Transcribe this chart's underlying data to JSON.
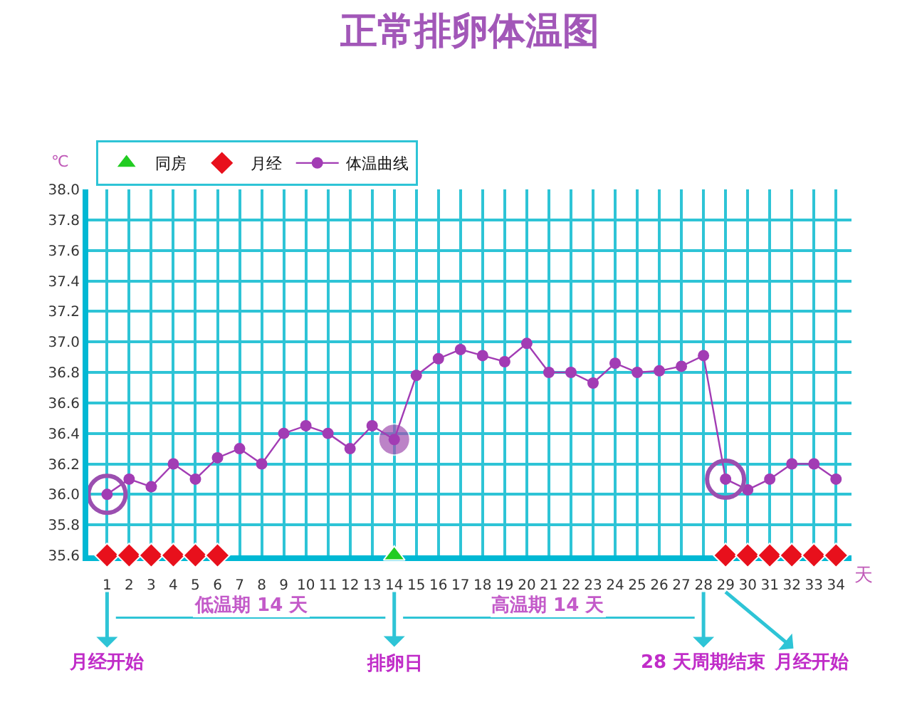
{
  "chart_data": {
    "type": "line",
    "title": "正常排卵体温图",
    "ylabel": "℃",
    "xlabel": "天",
    "x": [
      1,
      2,
      3,
      4,
      5,
      6,
      7,
      8,
      9,
      10,
      11,
      12,
      13,
      14,
      15,
      16,
      17,
      18,
      19,
      20,
      21,
      22,
      23,
      24,
      25,
      26,
      27,
      28,
      29,
      30,
      31,
      32,
      33,
      34
    ],
    "series": [
      {
        "name": "同房",
        "type": "scatter",
        "marker": "triangle",
        "color": "#22cc22",
        "x": [
          14
        ],
        "values": [
          35.6
        ]
      },
      {
        "name": "月经",
        "type": "scatter",
        "marker": "diamond",
        "color": "#e8101c",
        "x": [
          1,
          2,
          3,
          4,
          5,
          6,
          29,
          30,
          31,
          32,
          33,
          34
        ],
        "values": [
          35.6,
          35.6,
          35.6,
          35.6,
          35.6,
          35.6,
          35.6,
          35.6,
          35.6,
          35.6,
          35.6,
          35.6
        ]
      },
      {
        "name": "体温曲线",
        "marker": "circle",
        "color": "#a23cb4",
        "values": [
          36.0,
          36.1,
          36.05,
          36.2,
          36.1,
          36.24,
          36.3,
          36.2,
          36.4,
          36.45,
          36.4,
          36.3,
          36.45,
          36.36,
          36.78,
          36.89,
          36.95,
          36.91,
          36.87,
          36.99,
          36.8,
          36.8,
          36.73,
          36.86,
          36.8,
          36.81,
          36.84,
          36.91,
          36.1,
          36.03,
          36.1,
          36.2,
          36.2,
          36.1
        ]
      },
      {
        "type": "bubble",
        "color": "#a050b0",
        "x": [
          14
        ],
        "values": [
          36.36
        ],
        "sizes": [
          1
        ]
      },
      {
        "type": "scatter",
        "marker": "circle",
        "color": "#9b4fb0",
        "x": [
          1,
          29
        ],
        "values": [
          36.0,
          36.1
        ]
      }
    ],
    "xlim": [
      0.15,
      34.7
    ],
    "xticks": [
      1,
      2,
      3,
      4,
      5,
      6,
      7,
      8,
      9,
      10,
      11,
      12,
      13,
      14,
      15,
      16,
      17,
      18,
      19,
      20,
      21,
      22,
      23,
      24,
      25,
      26,
      27,
      28,
      29,
      30,
      31,
      32,
      33,
      34
    ],
    "ylim": [
      35.6,
      38.0
    ],
    "yticks": [
      {
        "value": 35.6,
        "label": "35.6"
      },
      {
        "value": 35.8,
        "label": "35.8"
      },
      {
        "value": 36.0,
        "label": "36.0"
      },
      {
        "value": 36.2,
        "label": "36.2"
      },
      {
        "value": 36.4,
        "label": "36.4"
      },
      {
        "value": 36.6,
        "label": "36.6"
      },
      {
        "value": 36.8,
        "label": "36.8"
      },
      {
        "value": 37.0,
        "label": "37.0"
      },
      {
        "value": 37.2,
        "label": "37.2"
      },
      {
        "value": 37.4,
        "label": "37.4"
      },
      {
        "value": 37.6,
        "label": "37.6"
      },
      {
        "value": 37.8,
        "label": "37.8"
      },
      {
        "value": 38.0,
        "label": "38.0"
      }
    ],
    "grid": true,
    "legend": "top left",
    "annotations": [
      {
        "text": "月经开始",
        "x": 1
      },
      "低温期 14 天",
      {
        "text": "排卵日",
        "x": 14
      },
      "高温期 14 天",
      {
        "text": "28 天周期结束",
        "x": 28
      },
      "月经开始"
    ]
  }
}
